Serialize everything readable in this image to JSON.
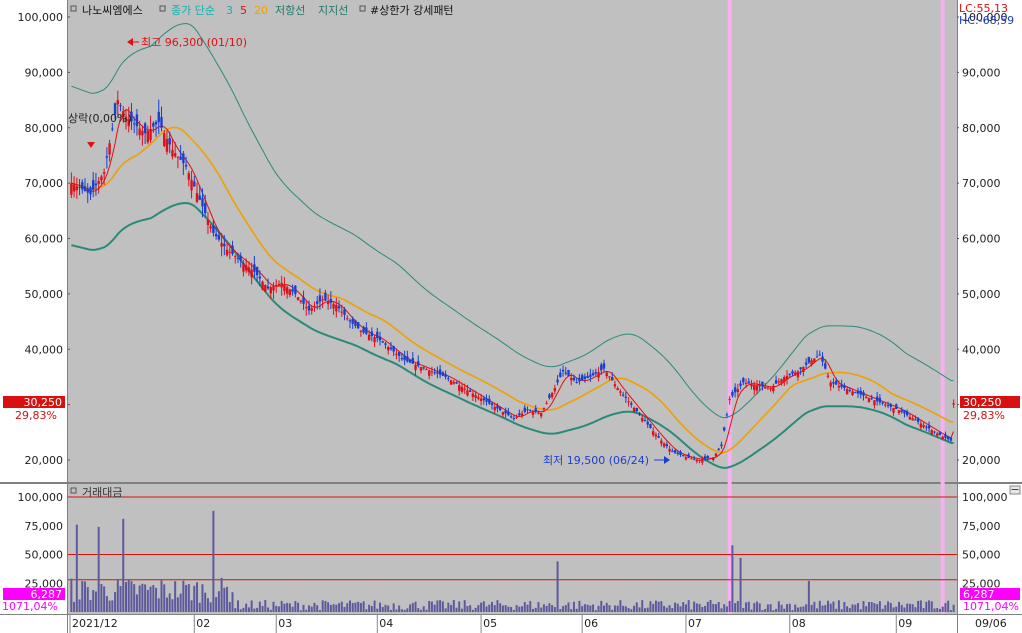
{
  "header": {
    "stock_name": "나노씨엠에스",
    "ma_label": "종가 단순",
    "ma_periods": [
      "3",
      "5",
      "20"
    ],
    "resistance_label": "저항선",
    "support_label": "지지선",
    "pattern_label": "#상한가 강세패턴",
    "lc_label": "LC:55,13",
    "hc_label": "HC:-68,59"
  },
  "price_panel": {
    "y_ticks": [
      "100,000",
      "90,000",
      "80,000",
      "70,000",
      "60,000",
      "50,000",
      "40,000",
      "30,000",
      "20,000"
    ],
    "y_range": [
      18000,
      100000
    ],
    "current_price": "30,250",
    "current_change": "29,83%",
    "high_annotation": "최고 96,300 (01/10)",
    "low_annotation": "최저 19,500 (06/24)",
    "left_annotation": "상락(0,00%)"
  },
  "volume_panel": {
    "title": "거래대금",
    "y_ticks": [
      "100,000",
      "75,000",
      "50,000",
      "25,000"
    ],
    "y_range": [
      0,
      100000
    ],
    "current_volume": "6,287",
    "volume_change": "1071,04%"
  },
  "x_axis": {
    "labels": [
      "2021/12",
      "02",
      "03",
      "04",
      "05",
      "06",
      "07",
      "08",
      "09"
    ],
    "corner_label": "09/06"
  },
  "colors": {
    "panel_bg": "#c0c0c0",
    "up": "#e0101a",
    "down": "#1a3fd0",
    "ma5": "#e01010",
    "ma20": "#f0a000",
    "band": "#2a8a7a",
    "highlight": "#f7b0f0",
    "volume": "#5d5a9c",
    "magenta_box": "#ff00ff",
    "price_box": "#d81010"
  },
  "chart_data": {
    "type": "candlestick",
    "series_hint": "daily OHLC, estimated from the chart",
    "x_range": [
      "2021-12",
      "2022-09-06"
    ],
    "key_points": [
      {
        "date": "2022-01-10",
        "high": 96300
      },
      {
        "date": "2022-06-24",
        "low": 19500
      },
      {
        "date": "2022-09-06",
        "close": 30250
      }
    ],
    "close_path": [
      [
        0,
        70000
      ],
      [
        7,
        68000
      ],
      [
        12,
        72000
      ],
      [
        17,
        85000
      ],
      [
        20,
        82000
      ],
      [
        27,
        79000
      ],
      [
        32,
        81000
      ],
      [
        37,
        76000
      ],
      [
        42,
        73000
      ],
      [
        47,
        67000
      ],
      [
        52,
        61000
      ],
      [
        57,
        58000
      ],
      [
        62,
        56000
      ],
      [
        67,
        54000
      ],
      [
        72,
        51000
      ],
      [
        77,
        52000
      ],
      [
        82,
        50000
      ],
      [
        87,
        47000
      ],
      [
        92,
        49000
      ],
      [
        97,
        48000
      ],
      [
        102,
        45000
      ],
      [
        107,
        43000
      ],
      [
        112,
        42000
      ],
      [
        117,
        40000
      ],
      [
        122,
        38000
      ],
      [
        127,
        37000
      ],
      [
        132,
        36000
      ],
      [
        137,
        35000
      ],
      [
        142,
        33500
      ],
      [
        147,
        32000
      ],
      [
        152,
        30500
      ],
      [
        157,
        29000
      ],
      [
        162,
        27500
      ],
      [
        167,
        29000
      ],
      [
        172,
        28500
      ],
      [
        177,
        33000
      ],
      [
        180,
        36000
      ],
      [
        185,
        34000
      ],
      [
        190,
        35000
      ],
      [
        195,
        36500
      ],
      [
        200,
        33000
      ],
      [
        205,
        30000
      ],
      [
        210,
        27000
      ],
      [
        215,
        24000
      ],
      [
        220,
        21500
      ],
      [
        225,
        20500
      ],
      [
        230,
        20000
      ],
      [
        235,
        20500
      ],
      [
        238,
        22500
      ],
      [
        241,
        31000
      ],
      [
        246,
        34000
      ],
      [
        251,
        33500
      ],
      [
        256,
        33000
      ],
      [
        261,
        35000
      ],
      [
        266,
        36000
      ],
      [
        271,
        38000
      ],
      [
        274,
        39000
      ],
      [
        278,
        34000
      ],
      [
        283,
        33000
      ],
      [
        288,
        32000
      ],
      [
        293,
        31000
      ],
      [
        298,
        30000
      ],
      [
        303,
        29000
      ],
      [
        308,
        27500
      ],
      [
        313,
        26000
      ],
      [
        318,
        24500
      ],
      [
        322,
        23500
      ],
      [
        323,
        30250
      ]
    ],
    "volume_spikes": [
      {
        "index": 2,
        "value": 76000
      },
      {
        "index": 10,
        "value": 74000
      },
      {
        "index": 19,
        "value": 81000
      },
      {
        "index": 52,
        "value": 88000
      },
      {
        "index": 178,
        "value": 44000
      },
      {
        "index": 242,
        "value": 58000
      },
      {
        "index": 245,
        "value": 47000
      },
      {
        "index": 270,
        "value": 27000
      }
    ]
  }
}
